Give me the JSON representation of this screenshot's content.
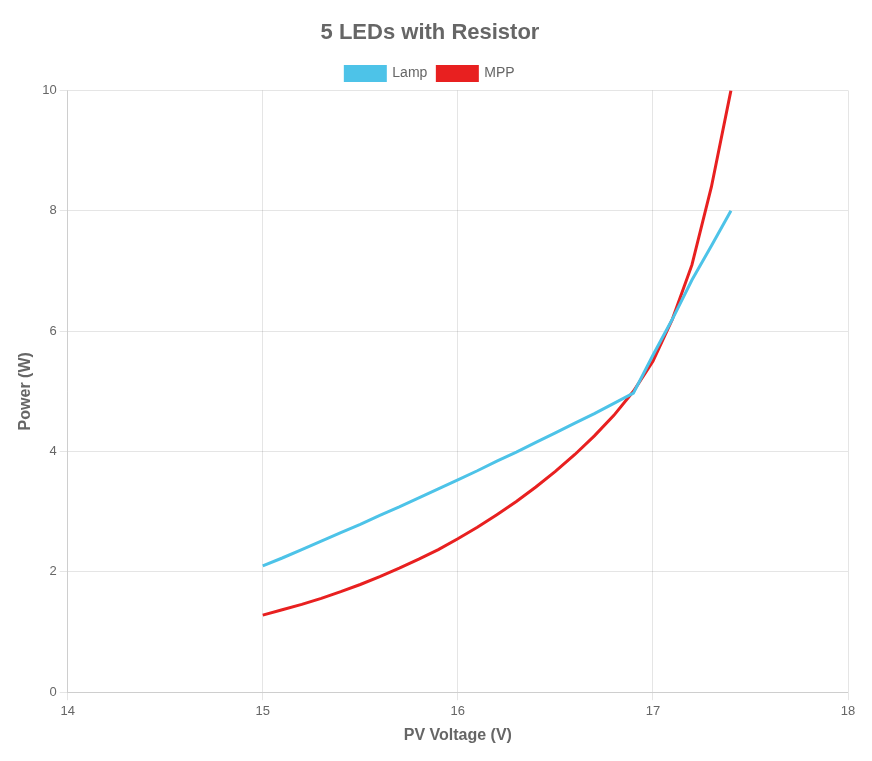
{
  "chart_data": {
    "type": "line",
    "title": "5 LEDs with Resistor",
    "xlabel": "PV Voltage (V)",
    "ylabel": "Power (W)",
    "x": [
      15.0,
      15.1,
      15.2,
      15.3,
      15.4,
      15.5,
      15.6,
      15.7,
      15.8,
      15.9,
      16.0,
      16.1,
      16.2,
      16.3,
      16.4,
      16.5,
      16.6,
      16.7,
      16.8,
      16.9,
      17.0,
      17.1,
      17.2,
      17.3,
      17.4
    ],
    "series": [
      {
        "name": "Lamp",
        "color": "#4DC3E8",
        "values": [
          2.1,
          2.23,
          2.37,
          2.51,
          2.65,
          2.79,
          2.94,
          3.08,
          3.23,
          3.38,
          3.53,
          3.68,
          3.84,
          3.99,
          4.15,
          4.31,
          4.47,
          4.63,
          4.8,
          4.97,
          5.6,
          6.2,
          6.85,
          7.42,
          8.0
        ]
      },
      {
        "name": "MPP",
        "color": "#E82020",
        "values": [
          1.28,
          1.37,
          1.46,
          1.56,
          1.67,
          1.79,
          1.92,
          2.06,
          2.21,
          2.37,
          2.55,
          2.74,
          2.95,
          3.17,
          3.41,
          3.67,
          3.95,
          4.26,
          4.6,
          5.0,
          5.5,
          6.2,
          7.1,
          8.4,
          10.0
        ]
      }
    ],
    "xlim": [
      14,
      18
    ],
    "xticks": [
      14,
      15,
      16,
      17,
      18
    ],
    "ylim": [
      0,
      10
    ],
    "yticks": [
      0,
      2,
      4,
      6,
      8,
      10
    ],
    "grid": true,
    "legend": "top"
  }
}
